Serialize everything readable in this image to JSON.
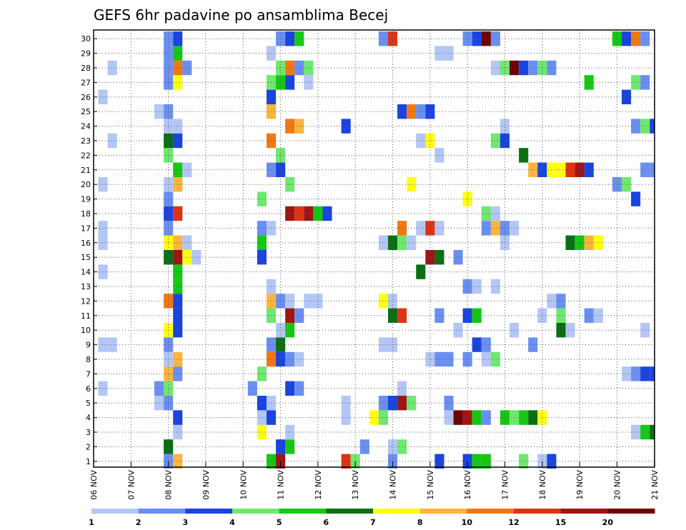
{
  "chart_data": {
    "type": "heatmap",
    "title": "GEFS 6hr padavine po ansamblima Becej",
    "xlabel": "",
    "ylabel": "",
    "x_tick_labels": [
      "06 NOV",
      "07 NOV",
      "08 NOV",
      "09 NOV",
      "10 NOV",
      "11 NOV",
      "12 NOV",
      "13 NOV",
      "14 NOV",
      "15 NOV",
      "16 NOV",
      "17 NOV",
      "18 NOV",
      "19 NOV",
      "20 NOV",
      "21 NOV"
    ],
    "y_tick_labels": [
      "1",
      "2",
      "3",
      "4",
      "5",
      "6",
      "7",
      "8",
      "9",
      "10",
      "11",
      "12",
      "13",
      "14",
      "15",
      "16",
      "17",
      "18",
      "19",
      "20",
      "21",
      "22",
      "23",
      "24",
      "25",
      "26",
      "27",
      "28",
      "29",
      "30"
    ],
    "xlim_steps": [
      0,
      60
    ],
    "ylim_members": [
      1,
      30
    ],
    "grid": true,
    "colorbar": {
      "levels": [
        "1",
        "2",
        "3",
        "4",
        "5",
        "6",
        "7",
        "8",
        "10",
        "12",
        "15",
        "20"
      ],
      "colors": [
        "#b3c6f5",
        "#6a8ff0",
        "#1a44e0",
        "#6ee86e",
        "#14c814",
        "#0a6e14",
        "#ffff14",
        "#ffb43c",
        "#f07814",
        "#e03214",
        "#a01414",
        "#6e0000"
      ]
    },
    "cells": [
      [
        1,
        8,
        2
      ],
      [
        1,
        9,
        8
      ],
      [
        1,
        19,
        5
      ],
      [
        1,
        20,
        11
      ],
      [
        1,
        27,
        10
      ],
      [
        1,
        28,
        4
      ],
      [
        1,
        32,
        2
      ],
      [
        1,
        37,
        3
      ],
      [
        1,
        40,
        3
      ],
      [
        1,
        41,
        5
      ],
      [
        1,
        42,
        5
      ],
      [
        1,
        46,
        4
      ],
      [
        1,
        48,
        1
      ],
      [
        1,
        49,
        3
      ],
      [
        2,
        8,
        6
      ],
      [
        2,
        20,
        3
      ],
      [
        2,
        21,
        5
      ],
      [
        2,
        29,
        2
      ],
      [
        2,
        32,
        1
      ],
      [
        2,
        33,
        4
      ],
      [
        3,
        9,
        1
      ],
      [
        3,
        18,
        7
      ],
      [
        3,
        21,
        1
      ],
      [
        3,
        58,
        1
      ],
      [
        3,
        59,
        5
      ],
      [
        3,
        60,
        6
      ],
      [
        4,
        9,
        3
      ],
      [
        4,
        18,
        1
      ],
      [
        4,
        19,
        3
      ],
      [
        4,
        27,
        1
      ],
      [
        4,
        30,
        7
      ],
      [
        4,
        31,
        4
      ],
      [
        4,
        38,
        1
      ],
      [
        4,
        39,
        12
      ],
      [
        4,
        40,
        11
      ],
      [
        4,
        41,
        5
      ],
      [
        4,
        42,
        2
      ],
      [
        4,
        44,
        5
      ],
      [
        4,
        45,
        4
      ],
      [
        4,
        46,
        5
      ],
      [
        4,
        47,
        6
      ],
      [
        4,
        48,
        7
      ],
      [
        5,
        7,
        1
      ],
      [
        5,
        8,
        2
      ],
      [
        5,
        18,
        3
      ],
      [
        5,
        19,
        1
      ],
      [
        5,
        27,
        1
      ],
      [
        5,
        31,
        2
      ],
      [
        5,
        32,
        3
      ],
      [
        5,
        33,
        11
      ],
      [
        5,
        34,
        4
      ],
      [
        5,
        38,
        2
      ],
      [
        6,
        1,
        1
      ],
      [
        6,
        7,
        2
      ],
      [
        6,
        8,
        4
      ],
      [
        6,
        17,
        2
      ],
      [
        6,
        21,
        3
      ],
      [
        6,
        22,
        2
      ],
      [
        6,
        33,
        1
      ],
      [
        7,
        8,
        8
      ],
      [
        7,
        9,
        2
      ],
      [
        7,
        18,
        4
      ],
      [
        7,
        57,
        1
      ],
      [
        7,
        58,
        2
      ],
      [
        7,
        59,
        3
      ],
      [
        7,
        60,
        3
      ],
      [
        7,
        61,
        6
      ],
      [
        8,
        8,
        1
      ],
      [
        8,
        9,
        8
      ],
      [
        8,
        19,
        9
      ],
      [
        8,
        20,
        3
      ],
      [
        8,
        21,
        2
      ],
      [
        8,
        22,
        1
      ],
      [
        8,
        36,
        1
      ],
      [
        8,
        37,
        2
      ],
      [
        8,
        38,
        2
      ],
      [
        8,
        40,
        2
      ],
      [
        8,
        42,
        1
      ],
      [
        8,
        43,
        4
      ],
      [
        9,
        1,
        1
      ],
      [
        9,
        2,
        1
      ],
      [
        9,
        8,
        2
      ],
      [
        9,
        19,
        2
      ],
      [
        9,
        20,
        6
      ],
      [
        9,
        31,
        1
      ],
      [
        9,
        32,
        1
      ],
      [
        9,
        41,
        3
      ],
      [
        9,
        42,
        2
      ],
      [
        9,
        47,
        2
      ],
      [
        10,
        8,
        7
      ],
      [
        10,
        9,
        3
      ],
      [
        10,
        20,
        1
      ],
      [
        10,
        21,
        5
      ],
      [
        10,
        39,
        1
      ],
      [
        10,
        45,
        1
      ],
      [
        10,
        50,
        6
      ],
      [
        10,
        51,
        1
      ],
      [
        10,
        59,
        1
      ],
      [
        11,
        9,
        3
      ],
      [
        11,
        19,
        4
      ],
      [
        11,
        21,
        11
      ],
      [
        11,
        22,
        2
      ],
      [
        11,
        32,
        6
      ],
      [
        11,
        33,
        10
      ],
      [
        11,
        37,
        2
      ],
      [
        11,
        40,
        3
      ],
      [
        11,
        41,
        5
      ],
      [
        11,
        48,
        1
      ],
      [
        11,
        50,
        4
      ],
      [
        11,
        53,
        2
      ],
      [
        11,
        54,
        1
      ],
      [
        12,
        8,
        9
      ],
      [
        12,
        9,
        3
      ],
      [
        12,
        19,
        8
      ],
      [
        12,
        20,
        2
      ],
      [
        12,
        21,
        1
      ],
      [
        12,
        23,
        1
      ],
      [
        12,
        24,
        1
      ],
      [
        12,
        31,
        7
      ],
      [
        12,
        32,
        1
      ],
      [
        12,
        49,
        1
      ],
      [
        12,
        50,
        2
      ],
      [
        13,
        9,
        5
      ],
      [
        13,
        19,
        1
      ],
      [
        13,
        40,
        2
      ],
      [
        13,
        41,
        1
      ],
      [
        13,
        43,
        1
      ],
      [
        14,
        1,
        1
      ],
      [
        14,
        9,
        5
      ],
      [
        14,
        35,
        6
      ],
      [
        15,
        8,
        6
      ],
      [
        15,
        9,
        11
      ],
      [
        15,
        10,
        7
      ],
      [
        15,
        11,
        1
      ],
      [
        15,
        18,
        3
      ],
      [
        15,
        36,
        11
      ],
      [
        15,
        37,
        6
      ],
      [
        15,
        39,
        2
      ],
      [
        16,
        1,
        1
      ],
      [
        16,
        8,
        7
      ],
      [
        16,
        9,
        8
      ],
      [
        16,
        10,
        1
      ],
      [
        16,
        18,
        5
      ],
      [
        16,
        31,
        1
      ],
      [
        16,
        32,
        6
      ],
      [
        16,
        33,
        4
      ],
      [
        16,
        34,
        1
      ],
      [
        16,
        44,
        1
      ],
      [
        16,
        51,
        6
      ],
      [
        16,
        52,
        5
      ],
      [
        16,
        53,
        8
      ],
      [
        16,
        54,
        7
      ],
      [
        17,
        1,
        1
      ],
      [
        17,
        8,
        2
      ],
      [
        17,
        18,
        2
      ],
      [
        17,
        19,
        1
      ],
      [
        17,
        33,
        9
      ],
      [
        17,
        35,
        1
      ],
      [
        17,
        36,
        10
      ],
      [
        17,
        37,
        1
      ],
      [
        17,
        42,
        2
      ],
      [
        17,
        43,
        8
      ],
      [
        17,
        44,
        2
      ],
      [
        17,
        45,
        1
      ],
      [
        18,
        8,
        3
      ],
      [
        18,
        9,
        10
      ],
      [
        18,
        21,
        11
      ],
      [
        18,
        22,
        10
      ],
      [
        18,
        23,
        11
      ],
      [
        18,
        24,
        5
      ],
      [
        18,
        25,
        3
      ],
      [
        18,
        42,
        4
      ],
      [
        18,
        43,
        1
      ],
      [
        19,
        8,
        2
      ],
      [
        19,
        18,
        4
      ],
      [
        19,
        40,
        7
      ],
      [
        19,
        58,
        3
      ],
      [
        20,
        1,
        1
      ],
      [
        20,
        8,
        1
      ],
      [
        20,
        9,
        8
      ],
      [
        20,
        21,
        4
      ],
      [
        20,
        34,
        7
      ],
      [
        20,
        56,
        2
      ],
      [
        20,
        57,
        4
      ],
      [
        21,
        9,
        5
      ],
      [
        21,
        10,
        1
      ],
      [
        21,
        19,
        2
      ],
      [
        21,
        20,
        3
      ],
      [
        21,
        47,
        8
      ],
      [
        21,
        48,
        3
      ],
      [
        21,
        49,
        7
      ],
      [
        21,
        50,
        7
      ],
      [
        21,
        51,
        10
      ],
      [
        21,
        52,
        11
      ],
      [
        21,
        53,
        3
      ],
      [
        21,
        59,
        2
      ],
      [
        21,
        60,
        2
      ],
      [
        22,
        8,
        4
      ],
      [
        22,
        20,
        4
      ],
      [
        22,
        37,
        1
      ],
      [
        22,
        46,
        6
      ],
      [
        23,
        2,
        1
      ],
      [
        23,
        8,
        6
      ],
      [
        23,
        9,
        3
      ],
      [
        23,
        19,
        9
      ],
      [
        23,
        35,
        1
      ],
      [
        23,
        36,
        7
      ],
      [
        23,
        43,
        4
      ],
      [
        23,
        44,
        3
      ],
      [
        24,
        8,
        1
      ],
      [
        24,
        9,
        1
      ],
      [
        24,
        21,
        9
      ],
      [
        24,
        22,
        8
      ],
      [
        24,
        27,
        3
      ],
      [
        24,
        44,
        1
      ],
      [
        24,
        58,
        2
      ],
      [
        24,
        59,
        4
      ],
      [
        24,
        60,
        3
      ],
      [
        25,
        7,
        1
      ],
      [
        25,
        8,
        2
      ],
      [
        25,
        19,
        8
      ],
      [
        25,
        33,
        3
      ],
      [
        25,
        34,
        9
      ],
      [
        25,
        35,
        2
      ],
      [
        25,
        36,
        3
      ],
      [
        26,
        1,
        1
      ],
      [
        26,
        19,
        3
      ],
      [
        26,
        57,
        3
      ],
      [
        27,
        8,
        2
      ],
      [
        27,
        9,
        7
      ],
      [
        27,
        19,
        4
      ],
      [
        27,
        20,
        5
      ],
      [
        27,
        21,
        3
      ],
      [
        27,
        23,
        1
      ],
      [
        27,
        53,
        5
      ],
      [
        27,
        58,
        4
      ],
      [
        27,
        59,
        2
      ],
      [
        28,
        2,
        1
      ],
      [
        28,
        8,
        2
      ],
      [
        28,
        9,
        9
      ],
      [
        28,
        10,
        2
      ],
      [
        28,
        20,
        4
      ],
      [
        28,
        21,
        9
      ],
      [
        28,
        22,
        2
      ],
      [
        28,
        23,
        4
      ],
      [
        28,
        43,
        1
      ],
      [
        28,
        44,
        4
      ],
      [
        28,
        45,
        12
      ],
      [
        28,
        46,
        3
      ],
      [
        28,
        47,
        2
      ],
      [
        28,
        48,
        4
      ],
      [
        28,
        49,
        2
      ],
      [
        29,
        8,
        2
      ],
      [
        29,
        9,
        5
      ],
      [
        29,
        19,
        1
      ],
      [
        29,
        37,
        1
      ],
      [
        29,
        38,
        1
      ],
      [
        30,
        8,
        2
      ],
      [
        30,
        9,
        3
      ],
      [
        30,
        20,
        2
      ],
      [
        30,
        21,
        3
      ],
      [
        30,
        22,
        5
      ],
      [
        30,
        31,
        2
      ],
      [
        30,
        32,
        10
      ],
      [
        30,
        40,
        2
      ],
      [
        30,
        41,
        3
      ],
      [
        30,
        42,
        12
      ],
      [
        30,
        43,
        2
      ],
      [
        30,
        56,
        5
      ],
      [
        30,
        57,
        3
      ],
      [
        30,
        58,
        9
      ],
      [
        30,
        59,
        2
      ]
    ]
  }
}
